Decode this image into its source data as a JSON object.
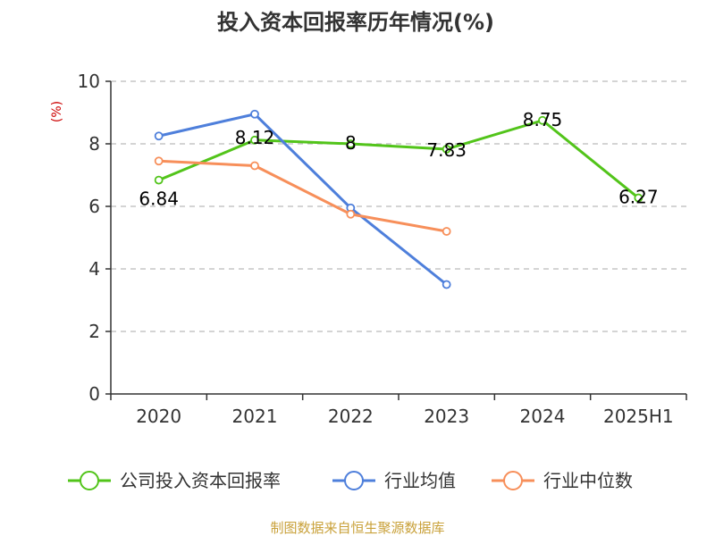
{
  "chart_data": {
    "type": "line",
    "title": "投入资本回报率历年情况(%)",
    "ylabel": "(%)",
    "xlabel": "",
    "categories": [
      "2020",
      "2021",
      "2022",
      "2023",
      "2024",
      "2025H1"
    ],
    "ylim": [
      0,
      10
    ],
    "yticks": [
      0,
      2,
      4,
      6,
      8,
      10
    ],
    "grid": true,
    "legend_position": "bottom",
    "series": [
      {
        "name": "公司投入资本回报率",
        "color": "#52c41a",
        "values": [
          6.84,
          8.12,
          8,
          7.83,
          8.75,
          6.27
        ],
        "labels": [
          "6.84",
          "8.12",
          "8",
          "7.83",
          "8.75",
          "6.27"
        ]
      },
      {
        "name": "行业均值",
        "color": "#4e7fdb",
        "values": [
          8.25,
          8.95,
          5.95,
          3.5,
          null,
          null
        ],
        "labels": null
      },
      {
        "name": "行业中位数",
        "color": "#f78f5a",
        "values": [
          7.45,
          7.3,
          5.75,
          5.2,
          null,
          null
        ],
        "labels": null
      }
    ]
  },
  "source": "制图数据来自恒生聚源数据库",
  "colors": {
    "title": "#333333",
    "axis": "#333333",
    "grid": "#bbbbbb",
    "ylabel": "#cc0000",
    "source": "#c9a13a"
  }
}
